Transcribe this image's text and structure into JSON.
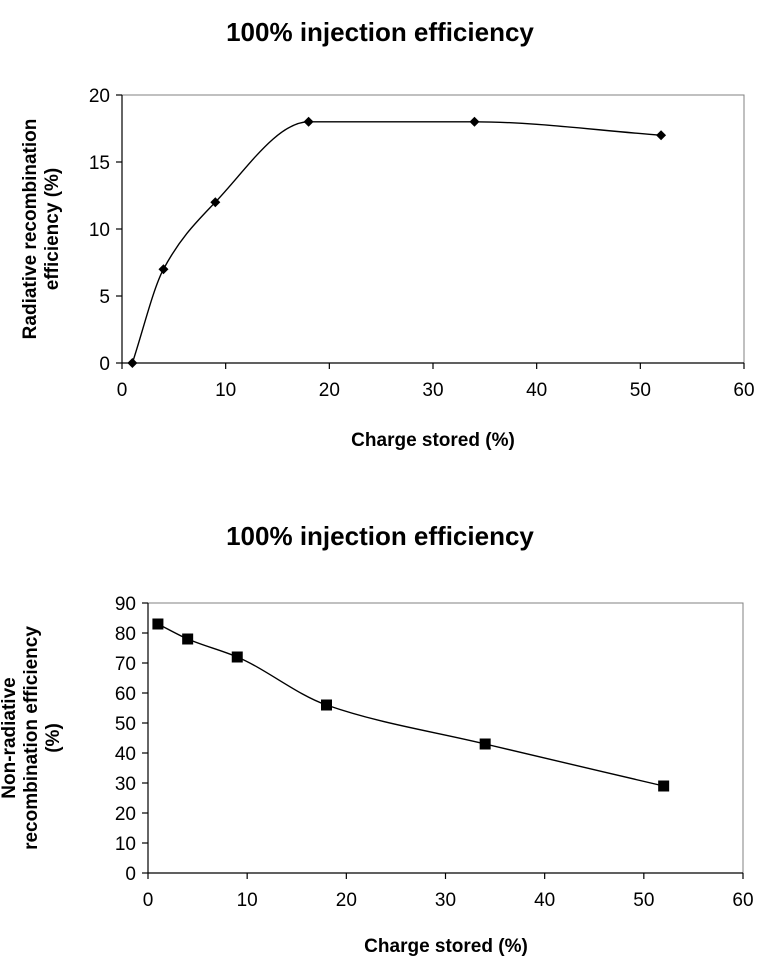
{
  "chart_data": [
    {
      "type": "line",
      "title": "100% injection efficiency",
      "xlabel": "Charge stored (%)",
      "ylabel": [
        "Radiative recombination",
        "efficiency (%)"
      ],
      "xlim": [
        0,
        60
      ],
      "ylim": [
        0,
        20
      ],
      "xticks": [
        0,
        10,
        20,
        30,
        40,
        50,
        60
      ],
      "yticks": [
        0,
        5,
        10,
        15,
        20
      ],
      "marker": "diamond",
      "grid": false,
      "legend": "none",
      "series": [
        {
          "x": [
            1,
            4,
            9,
            18,
            34,
            52
          ],
          "y": [
            0,
            7,
            12,
            18,
            18,
            17
          ]
        }
      ]
    },
    {
      "type": "line",
      "title": "100% injection efficiency",
      "xlabel": "Charge stored (%)",
      "ylabel": [
        "Non-radiative",
        "recombination efficiency",
        "(%)"
      ],
      "xlim": [
        0,
        60
      ],
      "ylim": [
        0,
        90
      ],
      "xticks": [
        0,
        10,
        20,
        30,
        40,
        50,
        60
      ],
      "yticks": [
        0,
        10,
        20,
        30,
        40,
        50,
        60,
        70,
        80,
        90
      ],
      "marker": "square",
      "grid": false,
      "legend": "none",
      "series": [
        {
          "x": [
            1,
            4,
            9,
            18,
            34,
            52
          ],
          "y": [
            83,
            78,
            72,
            56,
            43,
            29
          ]
        }
      ]
    }
  ]
}
